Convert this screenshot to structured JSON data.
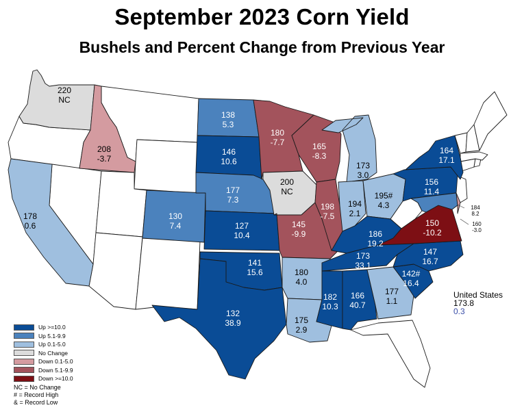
{
  "title": "September 2023 Corn Yield",
  "subtitle": "Bushels and Percent Change from Previous Year",
  "colors": {
    "up10": "#0a4c96",
    "up5": "#4b82bd",
    "up0": "#9fbfdf",
    "nochange": "#dcdcdc",
    "down0": "#d49ba0",
    "down5": "#a3535c",
    "down10": "#7d0f14",
    "none": "#ffffff"
  },
  "legend": [
    {
      "label": "Up >=10.0",
      "category": "up10"
    },
    {
      "label": "Up 5.1-9.9",
      "category": "up5"
    },
    {
      "label": "Up 0.1-5.0",
      "category": "up0"
    },
    {
      "label": "No Change",
      "category": "nochange"
    },
    {
      "label": "Down 0.1-5.0",
      "category": "down0"
    },
    {
      "label": "Down 5.1-9.9",
      "category": "down5"
    },
    {
      "label": "Down >=10.0",
      "category": "down10"
    }
  ],
  "notes": [
    "NC = No Change",
    "# = Record High",
    "& = Record Low"
  ],
  "us_total": {
    "label": "United States",
    "yield": "173.8",
    "change": "0.3"
  },
  "states": [
    {
      "state": "WA",
      "yield": "220",
      "change": "NC",
      "category": "nochange"
    },
    {
      "state": "ID",
      "yield": "208",
      "change": "-3.7",
      "category": "down0"
    },
    {
      "state": "CA",
      "yield": "178",
      "change": "0.6",
      "category": "up0"
    },
    {
      "state": "CO",
      "yield": "130",
      "change": "7.4",
      "category": "up5"
    },
    {
      "state": "ND",
      "yield": "138",
      "change": "5.3",
      "category": "up5"
    },
    {
      "state": "SD",
      "yield": "146",
      "change": "10.6",
      "category": "up10"
    },
    {
      "state": "NE",
      "yield": "177",
      "change": "7.3",
      "category": "up5"
    },
    {
      "state": "KS",
      "yield": "127",
      "change": "10.4",
      "category": "up10"
    },
    {
      "state": "OK",
      "yield": "141",
      "change": "15.6",
      "category": "up10"
    },
    {
      "state": "TX",
      "yield": "132",
      "change": "38.9",
      "category": "up10"
    },
    {
      "state": "MN",
      "yield": "180",
      "change": "-7.7",
      "category": "down5"
    },
    {
      "state": "IA",
      "yield": "200",
      "change": "NC",
      "category": "nochange"
    },
    {
      "state": "MO",
      "yield": "145",
      "change": "-9.9",
      "category": "down5"
    },
    {
      "state": "AR",
      "yield": "180",
      "change": "4.0",
      "category": "up0"
    },
    {
      "state": "LA",
      "yield": "175",
      "change": "2.9",
      "category": "up0"
    },
    {
      "state": "WI",
      "yield": "165",
      "change": "-8.3",
      "category": "down5"
    },
    {
      "state": "IL",
      "yield": "198",
      "change": "-7.5",
      "category": "down5"
    },
    {
      "state": "MI",
      "yield": "173",
      "change": "3.0",
      "category": "up0"
    },
    {
      "state": "IN",
      "yield": "194",
      "change": "2.1",
      "category": "up0"
    },
    {
      "state": "OH",
      "yield": "195#",
      "change": "4.3",
      "category": "up0"
    },
    {
      "state": "KY",
      "yield": "186",
      "change": "19.2",
      "category": "up10"
    },
    {
      "state": "TN",
      "yield": "173",
      "change": "33.1",
      "category": "up10"
    },
    {
      "state": "MS",
      "yield": "182",
      "change": "10.3",
      "category": "up10"
    },
    {
      "state": "AL",
      "yield": "166",
      "change": "40.7",
      "category": "up10"
    },
    {
      "state": "GA",
      "yield": "177",
      "change": "1.1",
      "category": "up0"
    },
    {
      "state": "SC",
      "yield": "142#",
      "change": "16.4",
      "category": "up10"
    },
    {
      "state": "NC",
      "yield": "147",
      "change": "16.7",
      "category": "up10"
    },
    {
      "state": "VA",
      "yield": "150",
      "change": "-10.2",
      "category": "down10"
    },
    {
      "state": "PA",
      "yield": "156",
      "change": "11.4",
      "category": "up10"
    },
    {
      "state": "NY",
      "yield": "164",
      "change": "17.1",
      "category": "up10"
    },
    {
      "state": "MD",
      "yield": "184",
      "change": "8.2",
      "category": "up5"
    },
    {
      "state": "DE",
      "yield": "160",
      "change": "-3.0",
      "category": "down0"
    }
  ],
  "no_data_states": [
    "OR",
    "MT",
    "WY",
    "NV",
    "UT",
    "AZ",
    "NM",
    "FL",
    "WV",
    "NJ",
    "CT",
    "RI",
    "MA",
    "VT",
    "NH",
    "ME"
  ]
}
